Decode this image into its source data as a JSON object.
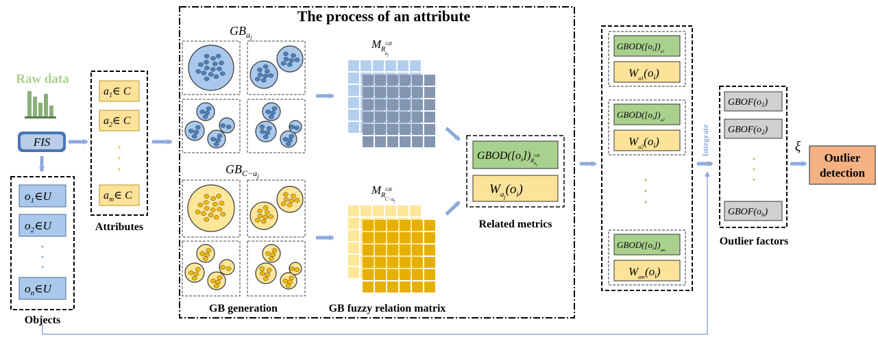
{
  "raw_data": {
    "label": "Raw data",
    "fis_label": "FIS"
  },
  "objects": {
    "items": [
      {
        "base": "o",
        "sub": "1",
        "rel": "∈U"
      },
      {
        "base": "o",
        "sub": "2",
        "rel": "∈U"
      },
      {
        "base": "o",
        "sub": "n",
        "rel": "∈U"
      }
    ],
    "caption": "Objects"
  },
  "attributes": {
    "items": [
      {
        "base": "a",
        "sub": "1",
        "rel": "∈ C"
      },
      {
        "base": "a",
        "sub": "2",
        "rel": "∈ C"
      },
      {
        "base": "a",
        "sub": "m",
        "rel": "∈ C"
      }
    ],
    "caption": "Attributes"
  },
  "process": {
    "title": "The process of an attribute",
    "gb_top": {
      "base": "GB",
      "sub": "a",
      "subsub": "j"
    },
    "gb_bottom": {
      "base": "GB",
      "sub": "C−a",
      "subsub": "j"
    },
    "m_top": {
      "base": "M",
      "sub": "R",
      "sup": "GB",
      "subsub": "a",
      "subsubsub": "j"
    },
    "m_bottom": {
      "base": "M",
      "sub": "R",
      "sup": "GB",
      "subsub": "C−a",
      "subsubsub": "j"
    },
    "gb_generation_caption": "GB generation",
    "matrix_caption": "GB fuzzy relation matrix"
  },
  "related_metrics": {
    "gbod": {
      "prefix": "GBOD([",
      "o": "o",
      "sub": "i",
      "suffix": "])",
      "rsub": "R",
      "rsup": "GB",
      "rsubsub": "a",
      "rsubsubsub": "j"
    },
    "weight": {
      "base": "W",
      "sub": "a",
      "subsub": "j",
      "arg": "(o",
      "argsub": "i",
      "close": ")"
    },
    "caption": "Related metrics"
  },
  "integrate_label": "Integrate",
  "stack": {
    "groups": [
      {
        "gbod": "GBOD([o",
        "gbod_sub": "i",
        "gbod_close": "])",
        "rsub": "a1",
        "w_sub": "a1"
      },
      {
        "gbod": "GBOD([o",
        "gbod_sub": "i",
        "gbod_close": "])",
        "rsub": "a2",
        "w_sub": "a2"
      },
      {
        "gbod": "GBOD([o",
        "gbod_sub": "i",
        "gbod_close": "])",
        "rsub": "am",
        "w_sub": "am"
      }
    ],
    "w_base": "W",
    "w_arg": "(o",
    "w_argsub": "i",
    "w_close": ")"
  },
  "outlier_factors": {
    "items": [
      {
        "prefix": "GBOF",
        "arg": "(o",
        "sub": "1",
        "close": ")"
      },
      {
        "prefix": "GBOF",
        "arg": "(o",
        "sub": "2",
        "close": ")"
      },
      {
        "prefix": "GBOF",
        "arg": "(o",
        "sub": "n",
        "close": ")"
      }
    ],
    "caption": "Outlier factors"
  },
  "threshold_symbol": "ξ",
  "outlier_detection": {
    "line1": "Outlier",
    "line2": "detection"
  },
  "colors": {
    "blue_box": "#a9c8ec",
    "blue_border": "#4a6b95",
    "yellow_box": "#fde39a",
    "yellow_border": "#b8942c",
    "green_box": "#a9d18e",
    "gray_box": "#d0d0d0",
    "orange_box": "#f4b183",
    "arrow": "#8faadc",
    "raw_data_green": "#a9d18e",
    "fis_fill": "#4a74b5",
    "fis_inner": "#b9cde8",
    "matrix_blue_light": "#b4cfee",
    "matrix_blue_dark": "#8496b0",
    "matrix_yellow_light": "#ffe699",
    "matrix_yellow_dark": "#e6b000",
    "ball_blue": "#a9c8ec",
    "ball_blue_dot": "#4f7fb8",
    "ball_yellow": "#ffe699",
    "ball_yellow_dot": "#f5b800"
  }
}
